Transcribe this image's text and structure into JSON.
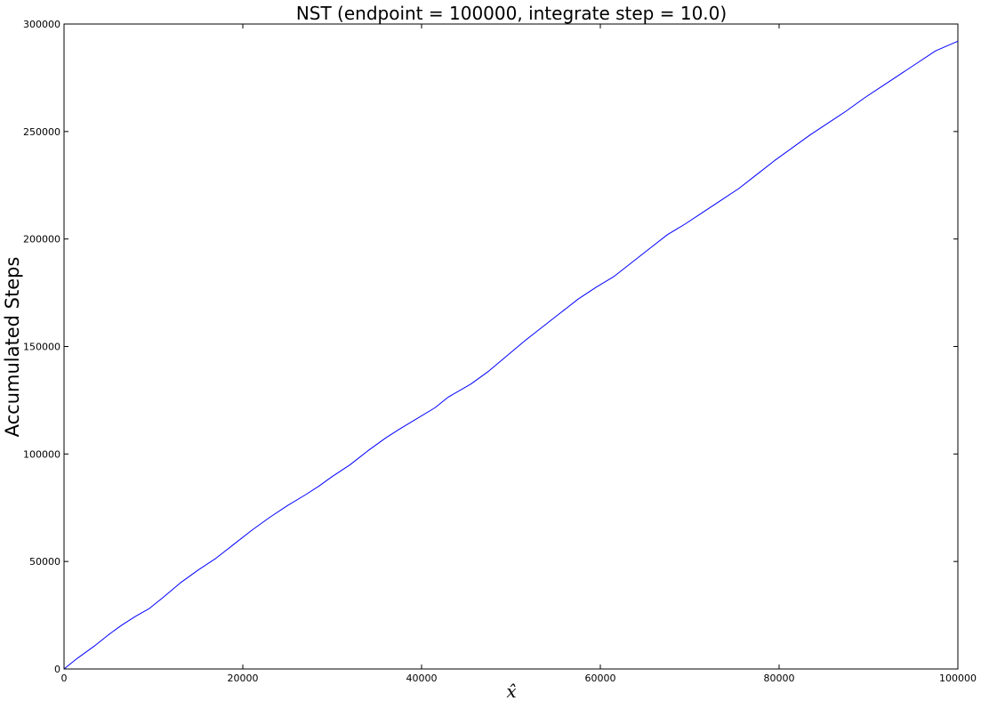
{
  "chart_data": {
    "type": "line",
    "title": "NST (endpoint = 100000, integrate step = 10.0)",
    "xlabel": "x̂",
    "ylabel": "Accumulated Steps",
    "xlim": [
      0,
      100000
    ],
    "ylim": [
      0,
      300000
    ],
    "x_ticks": [
      0,
      20000,
      40000,
      60000,
      80000,
      100000
    ],
    "y_ticks": [
      0,
      50000,
      100000,
      150000,
      200000,
      250000,
      300000
    ],
    "x_tick_labels": [
      "0",
      "20000",
      "40000",
      "60000",
      "80000",
      "100000"
    ],
    "y_tick_labels": [
      "0",
      "50000",
      "100000",
      "150000",
      "200000",
      "250000",
      "300000"
    ],
    "grid": false,
    "line_color": "#0000ff",
    "series": [
      {
        "x": [
          0,
          1500,
          3500,
          5000,
          6500,
          8000,
          9500,
          11000,
          13000,
          15000,
          17000,
          19000,
          21000,
          23000,
          25000,
          27000,
          28500,
          30000,
          32000,
          34000,
          36000,
          37500,
          39500,
          41500,
          43000,
          45500,
          47500,
          49500,
          51500,
          53500,
          55500,
          57500,
          59500,
          61500,
          63500,
          65500,
          67500,
          69500,
          71500,
          73500,
          75500,
          77500,
          79500,
          81500,
          83500,
          85500,
          87500,
          89500,
          91500,
          93500,
          95500,
          97500,
          100000
        ],
        "y": [
          0,
          5000,
          11000,
          16000,
          20500,
          24500,
          28000,
          33000,
          40000,
          46000,
          51500,
          58000,
          64500,
          70500,
          76000,
          81000,
          85000,
          89500,
          95000,
          101500,
          107500,
          111500,
          116500,
          121500,
          126500,
          132500,
          138500,
          145500,
          152500,
          159000,
          165500,
          172000,
          177500,
          182500,
          189000,
          195500,
          202000,
          207000,
          212500,
          218000,
          223500,
          230000,
          236500,
          242500,
          248500,
          254000,
          259500,
          265500,
          271000,
          276500,
          282000,
          287500,
          292000
        ]
      }
    ]
  }
}
